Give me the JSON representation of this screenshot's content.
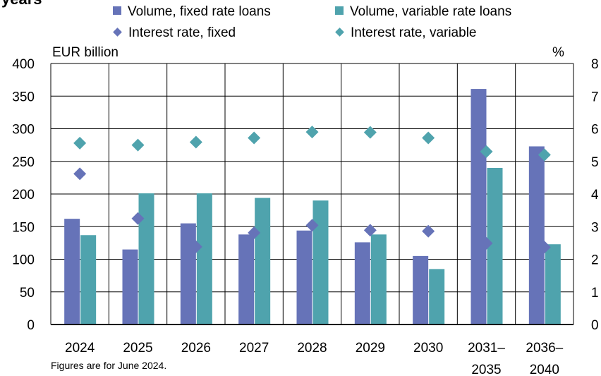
{
  "chart_data": {
    "type": "bar",
    "title": "years",
    "categories": [
      "2024",
      "2025",
      "2026",
      "2027",
      "2028",
      "2029",
      "2030",
      "2031–2035",
      "2036–2040"
    ],
    "category_lines": [
      [
        "2024"
      ],
      [
        "2025"
      ],
      [
        "2026"
      ],
      [
        "2027"
      ],
      [
        "2028"
      ],
      [
        "2029"
      ],
      [
        "2030"
      ],
      [
        "2031–",
        "2035"
      ],
      [
        "2036–",
        "2040"
      ]
    ],
    "left_axis": {
      "label": "EUR billion",
      "ylim": [
        0,
        400
      ],
      "ticks": [
        "0",
        "50",
        "100",
        "150",
        "200",
        "250",
        "300",
        "350",
        "400"
      ]
    },
    "right_axis": {
      "label": "%",
      "ylim": [
        0,
        8
      ],
      "ticks": [
        "0",
        "1",
        "2",
        "3",
        "4",
        "5",
        "6",
        "7",
        "8"
      ]
    },
    "series": [
      {
        "name": "Volume, fixed rate loans",
        "kind": "bar",
        "axis": "left",
        "color": "#6673b8",
        "values": [
          162,
          115,
          155,
          138,
          144,
          126,
          105,
          361,
          273
        ]
      },
      {
        "name": "Volume, variable rate loans",
        "kind": "bar",
        "axis": "left",
        "color": "#4fa3ad",
        "values": [
          137,
          201,
          201,
          194,
          190,
          138,
          85,
          240,
          123
        ]
      },
      {
        "name": "Interest rate, fixed",
        "kind": "marker",
        "axis": "right",
        "color": "#6673b8",
        "values": [
          4.62,
          3.25,
          2.38,
          2.81,
          3.04,
          2.89,
          2.86,
          2.49,
          2.37
        ]
      },
      {
        "name": "Interest rate, variable",
        "kind": "marker",
        "axis": "right",
        "color": "#4fa3ad",
        "values": [
          5.56,
          5.5,
          5.59,
          5.72,
          5.9,
          5.89,
          5.72,
          5.3,
          5.2
        ]
      }
    ],
    "grid": true,
    "legend_position": "top"
  },
  "note": "Figures are for June 2024."
}
